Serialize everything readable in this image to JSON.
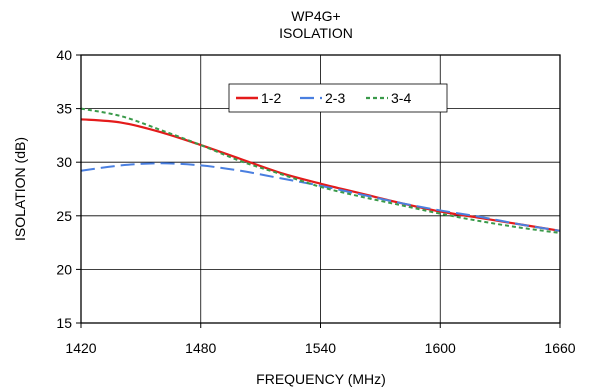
{
  "chart_data": {
    "type": "line",
    "title": "WP4G+",
    "subtitle": "ISOLATION",
    "xlabel": "FREQUENCY (MHz)",
    "ylabel": "ISOLATION (dB)",
    "xlim": [
      1420,
      1660
    ],
    "ylim": [
      15,
      40
    ],
    "xticks": [
      1420,
      1480,
      1540,
      1600,
      1660
    ],
    "yticks": [
      15,
      20,
      25,
      30,
      35,
      40
    ],
    "grid": true,
    "legend_position": "top-center",
    "series": [
      {
        "name": "1-2",
        "color": "#e41b1b",
        "style": "solid",
        "x": [
          1420,
          1440,
          1460,
          1480,
          1500,
          1520,
          1540,
          1560,
          1580,
          1600,
          1620,
          1640,
          1660
        ],
        "y": [
          34.0,
          33.7,
          32.8,
          31.6,
          30.3,
          29.0,
          28.0,
          27.1,
          26.2,
          25.4,
          24.8,
          24.2,
          23.6
        ]
      },
      {
        "name": "2-3",
        "color": "#4a7fe0",
        "style": "dashed",
        "x": [
          1420,
          1440,
          1460,
          1480,
          1500,
          1520,
          1540,
          1560,
          1580,
          1600,
          1620,
          1640,
          1660
        ],
        "y": [
          29.2,
          29.7,
          29.9,
          29.7,
          29.2,
          28.5,
          27.8,
          27.0,
          26.2,
          25.5,
          24.9,
          24.2,
          23.6
        ]
      },
      {
        "name": "3-4",
        "color": "#3a9a4a",
        "style": "dotted",
        "x": [
          1420,
          1440,
          1460,
          1480,
          1500,
          1520,
          1540,
          1560,
          1580,
          1600,
          1620,
          1640,
          1660
        ],
        "y": [
          35.0,
          34.3,
          33.0,
          31.6,
          30.1,
          28.9,
          27.7,
          26.8,
          26.0,
          25.2,
          24.5,
          23.9,
          23.4
        ]
      }
    ]
  }
}
